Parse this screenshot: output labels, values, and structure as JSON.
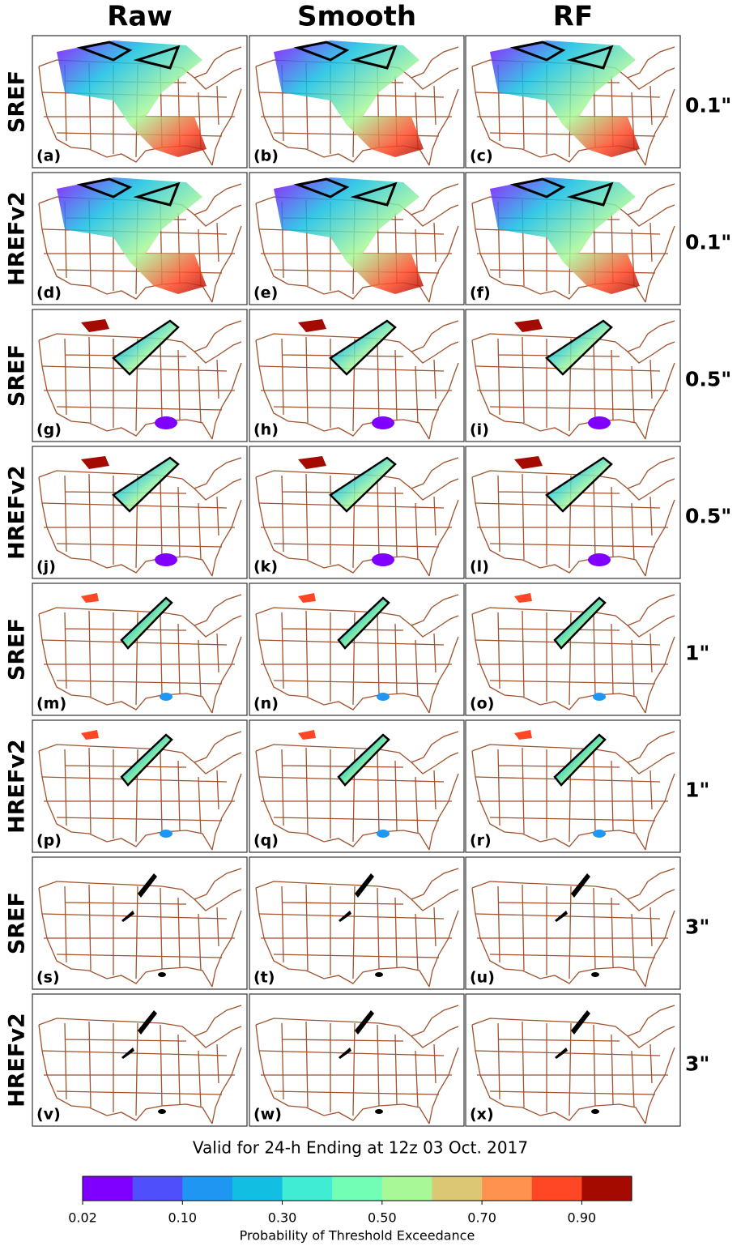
{
  "columns": [
    "Raw",
    "Smooth",
    "RF"
  ],
  "rows": [
    {
      "model": "SREF",
      "threshold": "0.1\"",
      "panels": [
        "(a)",
        "(b)",
        "(c)"
      ]
    },
    {
      "model": "HREFv2",
      "threshold": "0.1\"",
      "panels": [
        "(d)",
        "(e)",
        "(f)"
      ]
    },
    {
      "model": "SREF",
      "threshold": "0.5\"",
      "panels": [
        "(g)",
        "(h)",
        "(i)"
      ]
    },
    {
      "model": "HREFv2",
      "threshold": "0.5\"",
      "panels": [
        "(j)",
        "(k)",
        "(l)"
      ]
    },
    {
      "model": "SREF",
      "threshold": "1\"",
      "panels": [
        "(m)",
        "(n)",
        "(o)"
      ]
    },
    {
      "model": "HREFv2",
      "threshold": "1\"",
      "panels": [
        "(p)",
        "(q)",
        "(r)"
      ]
    },
    {
      "model": "SREF",
      "threshold": "3\"",
      "panels": [
        "(s)",
        "(t)",
        "(u)"
      ]
    },
    {
      "model": "HREFv2",
      "threshold": "3\"",
      "panels": [
        "(v)",
        "(w)",
        "(x)"
      ]
    }
  ],
  "caption": "Valid for 24-h Ending at 12z 03 Oct. 2017",
  "colorbar": {
    "label": "Probability of Threshold Exceedance",
    "bounds": [
      0.02,
      0.05,
      0.1,
      0.2,
      0.3,
      0.4,
      0.5,
      0.6,
      0.7,
      0.8,
      0.9,
      1.0
    ],
    "colors": [
      "#7f00ff",
      "#4f4ffc",
      "#1f96f2",
      "#12bfe3",
      "#40ecd3",
      "#73feb6",
      "#a9f897",
      "#dbc774",
      "#ff924e",
      "#ff4726",
      "#a50a00"
    ],
    "ticks": [
      0.02,
      {
        "value": 0.1,
        "label": "0.10"
      },
      {
        "value": 0.3,
        "label": "0.30"
      },
      {
        "value": 0.5,
        "label": "0.50"
      },
      {
        "value": 0.7,
        "label": "0.70"
      },
      {
        "value": 0.9,
        "label": "0.90"
      }
    ]
  }
}
